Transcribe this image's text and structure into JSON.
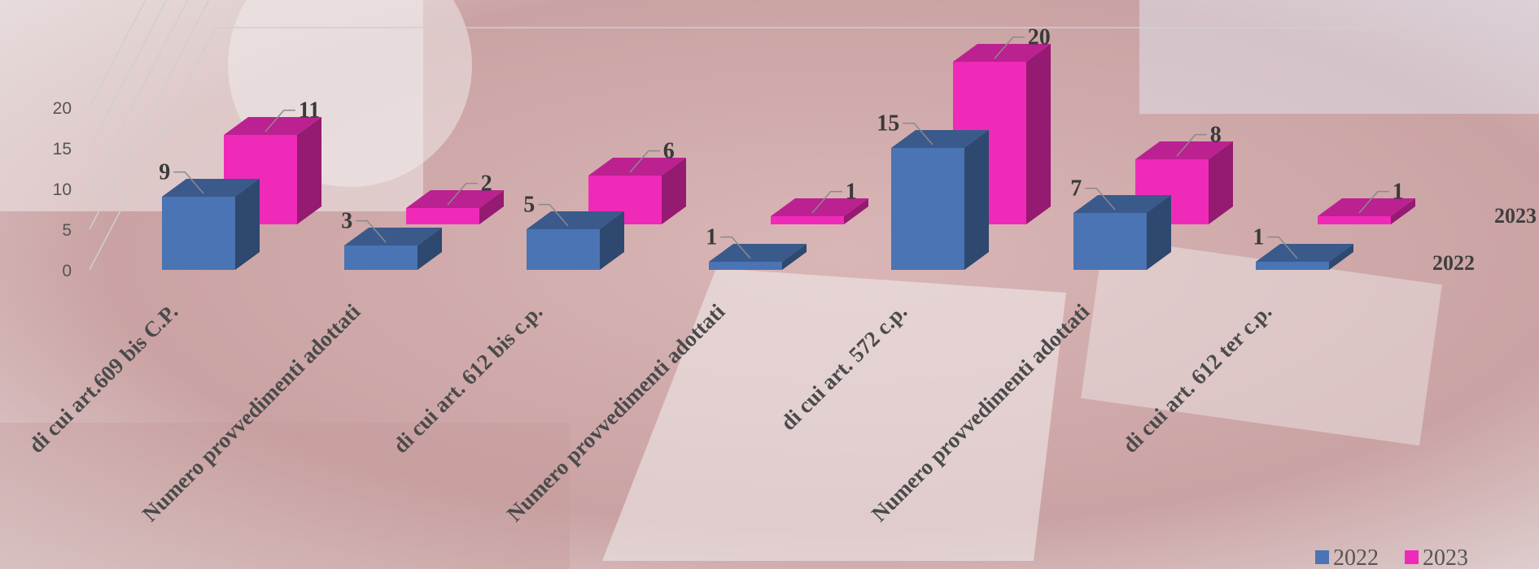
{
  "chart_data": {
    "type": "bar",
    "title": "",
    "xlabel": "",
    "ylabel": "",
    "ylim": [
      0,
      20
    ],
    "yticks": [
      "0",
      "5",
      "10",
      "15",
      "20"
    ],
    "grid": true,
    "legend_position": "bottom-right",
    "categories": [
      "di cui art.609 bis C.P.",
      "Numero provvedimenti adottati",
      "di cui art. 612 bis c.p.",
      "Numero provvedimenti adottati",
      "di cui art. 572 c.p.",
      "Numero provvedimenti adottati",
      "di cui art. 612 ter c.p."
    ],
    "series": [
      {
        "name": "2022",
        "color": "#4a74b3",
        "values": [
          9,
          3,
          5,
          1,
          15,
          7,
          1
        ]
      },
      {
        "name": "2023",
        "color": "#f02ab8",
        "values": [
          11,
          2,
          6,
          1,
          20,
          8,
          1
        ]
      }
    ],
    "depth_labels": [
      "2022",
      "2023"
    ]
  }
}
